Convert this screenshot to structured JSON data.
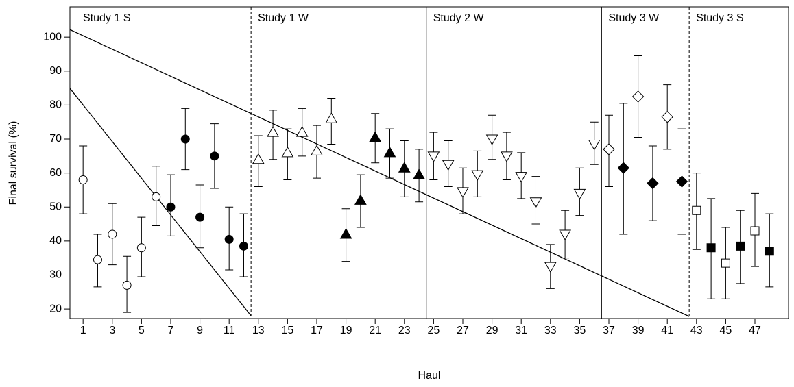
{
  "chart_data": {
    "type": "errorbar",
    "xlabel": "Haul",
    "ylabel": "Final survival (%)",
    "xlim": [
      0.1,
      49.3
    ],
    "ylim": [
      17.2,
      108.9
    ],
    "xticks": [
      1,
      3,
      5,
      7,
      9,
      11,
      13,
      15,
      17,
      19,
      21,
      23,
      25,
      27,
      29,
      31,
      33,
      35,
      37,
      39,
      41,
      43,
      45,
      47
    ],
    "yticks": [
      20,
      30,
      40,
      50,
      60,
      70,
      80,
      90,
      100
    ],
    "grid": false,
    "studies": [
      {
        "label": "Study 1 S",
        "from": 0.1,
        "to": 12.5
      },
      {
        "label": "Study 1 W",
        "from": 12.5,
        "to": 24.5
      },
      {
        "label": "Study 2 W",
        "from": 24.5,
        "to": 36.5
      },
      {
        "label": "Study 3 W",
        "from": 36.5,
        "to": 42.5
      },
      {
        "label": "Study 3 S",
        "from": 42.5,
        "to": 49.3
      }
    ],
    "dividers": [
      {
        "x": 12.5,
        "dashed": true
      },
      {
        "x": 24.5,
        "dashed": false
      },
      {
        "x": 36.5,
        "dashed": false
      },
      {
        "x": 42.5,
        "dashed": true
      }
    ],
    "lines": [
      {
        "x": [
          0.1,
          12.5
        ],
        "y": [
          84.9,
          18
        ]
      },
      {
        "x": [
          0.1,
          42.5
        ],
        "y": [
          102.2,
          17.8
        ]
      }
    ],
    "x": [
      1,
      2,
      3,
      4,
      5,
      6,
      7,
      8,
      9,
      10,
      11,
      12,
      13,
      14,
      15,
      16,
      17,
      18,
      19,
      20,
      21,
      22,
      23,
      24,
      25,
      26,
      27,
      28,
      29,
      30,
      31,
      32,
      33,
      34,
      35,
      36,
      37,
      38,
      39,
      40,
      41,
      42,
      43,
      44,
      45,
      46,
      47,
      48
    ],
    "y": [
      58,
      34.5,
      42,
      27,
      38,
      53,
      50,
      70,
      47,
      65,
      40.5,
      38.5,
      64,
      72,
      66,
      72,
      66.5,
      76,
      42,
      52,
      70.5,
      66,
      61.5,
      59.5,
      65,
      62.5,
      54.5,
      59.5,
      70,
      65,
      59,
      51.5,
      32.5,
      42,
      54,
      68.5,
      67,
      61.5,
      82.5,
      57,
      76.5,
      57.5,
      49,
      38,
      33.5,
      38.5,
      43,
      37
    ],
    "lower": [
      48,
      26.5,
      33,
      19,
      29.5,
      44.5,
      41.5,
      61,
      38,
      55.5,
      31.5,
      29.5,
      56,
      64,
      58,
      65,
      58.5,
      68.5,
      34,
      44,
      63,
      58.5,
      53,
      51.5,
      58,
      56,
      48,
      53,
      64,
      58,
      52.5,
      45,
      26,
      35,
      47.5,
      62.5,
      56,
      42,
      70.5,
      46,
      67,
      42,
      37.5,
      23,
      23,
      27.5,
      32.5,
      26.5
    ],
    "upper": [
      68,
      42,
      51,
      35.5,
      47,
      62,
      59.5,
      79,
      56.5,
      74.5,
      50,
      48,
      71,
      78.5,
      73,
      79,
      74,
      82,
      49.5,
      59.5,
      77.5,
      73,
      69.5,
      67,
      72,
      69.5,
      61.5,
      66.5,
      77,
      72,
      66,
      59,
      39,
      49,
      61.5,
      75,
      77,
      80.5,
      94.5,
      68,
      86,
      73,
      60,
      52.5,
      44,
      49,
      54,
      48
    ],
    "marker": [
      "circle",
      "circle",
      "circle",
      "circle",
      "circle",
      "circle",
      "circle",
      "circle",
      "circle",
      "circle",
      "circle",
      "circle",
      "triangle-up",
      "triangle-up",
      "triangle-up",
      "triangle-up",
      "triangle-up",
      "triangle-up",
      "triangle-up",
      "triangle-up",
      "triangle-up",
      "triangle-up",
      "triangle-up",
      "triangle-up",
      "triangle-down",
      "triangle-down",
      "triangle-down",
      "triangle-down",
      "triangle-down",
      "triangle-down",
      "triangle-down",
      "triangle-down",
      "triangle-down",
      "triangle-down",
      "triangle-down",
      "triangle-down",
      "diamond",
      "diamond",
      "diamond",
      "diamond",
      "diamond",
      "diamond",
      "square",
      "square",
      "square",
      "square",
      "square",
      "square"
    ],
    "filled": [
      false,
      false,
      false,
      false,
      false,
      false,
      true,
      true,
      true,
      true,
      true,
      true,
      false,
      false,
      false,
      false,
      false,
      false,
      true,
      true,
      true,
      true,
      true,
      true,
      false,
      false,
      false,
      false,
      false,
      false,
      false,
      false,
      false,
      false,
      false,
      false,
      false,
      true,
      false,
      true,
      false,
      true,
      false,
      true,
      false,
      true,
      false,
      true
    ],
    "color": "#000000"
  }
}
